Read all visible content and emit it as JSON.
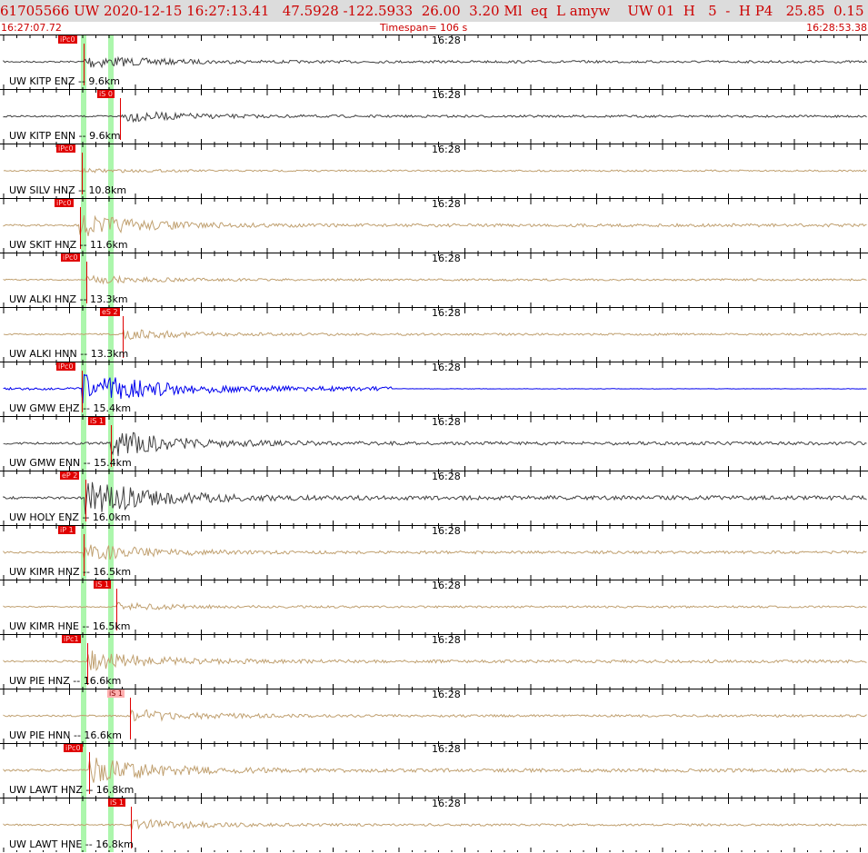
{
  "header": {
    "summary": "61705566 UW 2020-12-15 16:27:13.41   47.5928 -122.5933  26.00  3.20 Ml  eq  L amyw    UW 01  H   5  -  H P4   25.85  0.15"
  },
  "subheader": {
    "start_time": "16:27:07.72",
    "timespan": "Timespan= 106 s",
    "end_time": "16:28:53.38"
  },
  "colors": {
    "header_bg": "#dcdcdc",
    "accent": "#cc0000",
    "trace_tan": "#c0a070",
    "trace_dark": "#404040",
    "trace_blue": "#0000ee",
    "band": "#9ef59e",
    "pick": "#e00000"
  },
  "panels": [
    {
      "label": "UW KITP ENZ -- 9.6km",
      "tick_time": "16:28",
      "color": "dark",
      "pick": "iPc0",
      "pick_kind": "P",
      "amp": 0.35,
      "light": false
    },
    {
      "label": "UW KITP ENN -- 9.6km",
      "tick_time": "16:28",
      "color": "dark",
      "pick": "iS 0",
      "pick_kind": "S",
      "amp": 0.3,
      "light": false
    },
    {
      "label": "UW SILV HNZ -- 10.8km",
      "tick_time": "16:28",
      "color": "tan",
      "pick": "iPc0",
      "pick_kind": "P",
      "amp": 0.08,
      "light": false
    },
    {
      "label": "UW SKIT HNZ -- 11.6km",
      "tick_time": "16:28",
      "color": "tan",
      "pick": "iPc0",
      "pick_kind": "P",
      "amp": 0.6,
      "light": false
    },
    {
      "label": "UW ALKI HNZ -- 13.3km",
      "tick_time": "16:28",
      "color": "tan",
      "pick": "iPc0",
      "pick_kind": "P",
      "amp": 0.2,
      "light": false
    },
    {
      "label": "UW ALKI HNN -- 13.3km",
      "tick_time": "16:28",
      "color": "tan",
      "pick": "eS 2",
      "pick_kind": "S",
      "amp": 0.25,
      "light": false
    },
    {
      "label": "UW GMW EHZ -- 15.4km",
      "tick_time": "16:28",
      "color": "blue",
      "pick": "iPc0",
      "pick_kind": "P",
      "amp": 0.9,
      "light": false
    },
    {
      "label": "UW GMW ENN -- 15.4km",
      "tick_time": "16:28",
      "color": "dark",
      "pick": "iS 1",
      "pick_kind": "S",
      "amp": 0.7,
      "light": false
    },
    {
      "label": "UW HOLY ENZ -- 16.0km",
      "tick_time": "16:28",
      "color": "dark",
      "pick": "eP 2",
      "pick_kind": "P",
      "amp": 1.0,
      "light": false
    },
    {
      "label": "UW KIMR HNZ -- 16.5km",
      "tick_time": "16:28",
      "color": "tan",
      "pick": "iP 1",
      "pick_kind": "P",
      "amp": 0.5,
      "light": false
    },
    {
      "label": "UW KIMR HNE -- 16.5km",
      "tick_time": "16:28",
      "color": "tan",
      "pick": "iS 1",
      "pick_kind": "S",
      "amp": 0.2,
      "light": false
    },
    {
      "label": "UW PIE HNZ -- 16.6km",
      "tick_time": "16:28",
      "color": "tan",
      "pick": "iPc1",
      "pick_kind": "P",
      "amp": 0.55,
      "light": false
    },
    {
      "label": "UW PIE HNN -- 16.6km",
      "tick_time": "16:28",
      "color": "tan",
      "pick": "iS 1",
      "pick_kind": "S",
      "amp": 0.35,
      "light": true
    },
    {
      "label": "UW LAWT HNZ -- 16.8km",
      "tick_time": "16:28",
      "color": "tan",
      "pick": "iPc0",
      "pick_kind": "P",
      "amp": 0.75,
      "light": false
    },
    {
      "label": "UW LAWT HNE -- 16.8km",
      "tick_time": "16:28",
      "color": "tan",
      "pick": "iS 1",
      "pick_kind": "S",
      "amp": 0.3,
      "light": false
    }
  ]
}
